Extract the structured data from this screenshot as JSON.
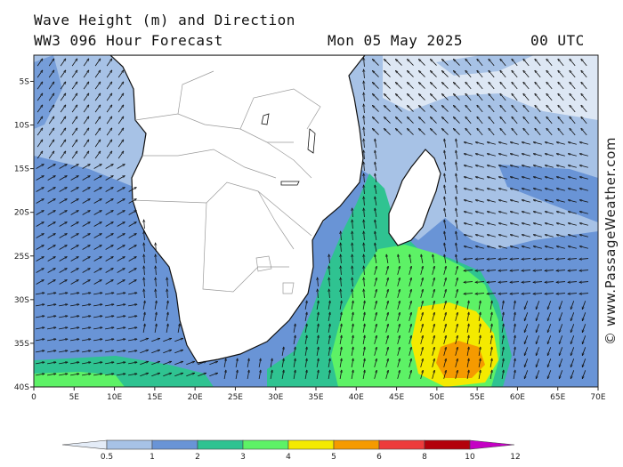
{
  "header": {
    "title": "Wave Height (m) and Direction",
    "subtitle": "WW3 096 Hour Forecast",
    "date": "Mon 05 May 2025",
    "time": "00 UTC"
  },
  "credit": "© www.PassageWeather.com",
  "axes": {
    "lat_labels": [
      "5S",
      "10S",
      "15S",
      "20S",
      "25S",
      "30S",
      "35S",
      "40S"
    ],
    "lon_labels": [
      "0",
      "5E",
      "10E",
      "15E",
      "20E",
      "25E",
      "30E",
      "35E",
      "40E",
      "45E",
      "50E",
      "55E",
      "60E",
      "65E",
      "70E"
    ],
    "lon_range": [
      0,
      70
    ],
    "lat_range": [
      -2,
      -40
    ]
  },
  "legend": {
    "labels": [
      "0.5",
      "1",
      "2",
      "3",
      "4",
      "5",
      "6",
      "8",
      "10",
      "12"
    ],
    "colors": [
      "#e4ecf7",
      "#a7c2e6",
      "#6994d6",
      "#2fc391",
      "#5df266",
      "#f4ea00",
      "#f59a00",
      "#ed3b3b",
      "#b3000a",
      "#c400c4"
    ]
  }
}
